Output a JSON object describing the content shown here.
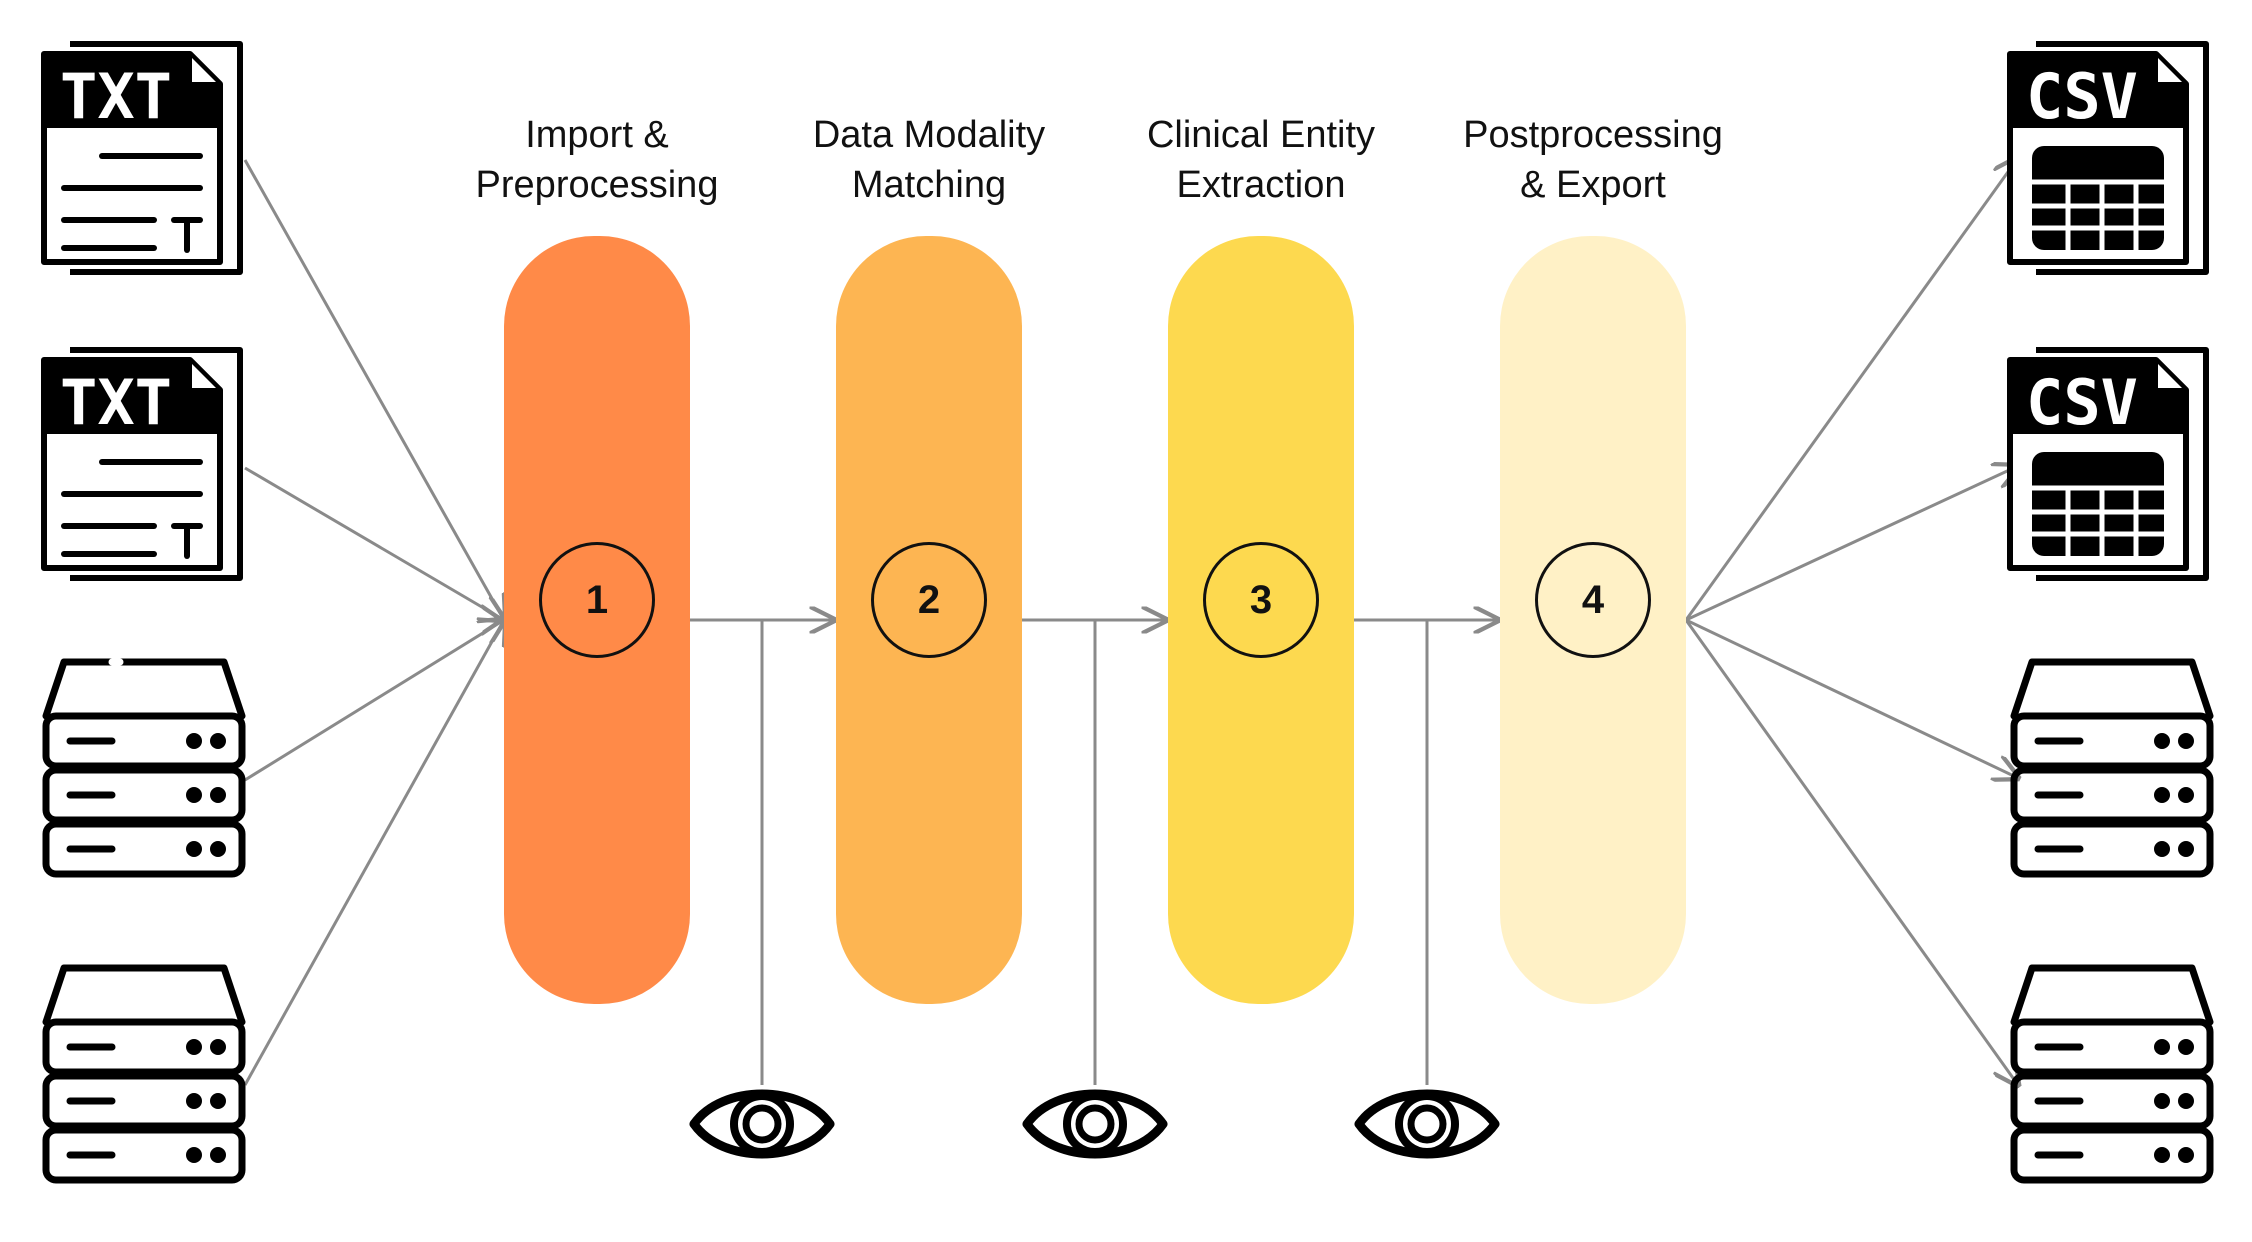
{
  "stages": [
    {
      "number": "1",
      "title_line1": "Import &",
      "title_line2": "Preprocessing",
      "color": "#FF8A48"
    },
    {
      "number": "2",
      "title_line1": "Data Modality",
      "title_line2": "Matching",
      "color": "#FDB552"
    },
    {
      "number": "3",
      "title_line1": "Clinical Entity",
      "title_line2": "Extraction",
      "color": "#FDD94F"
    },
    {
      "number": "4",
      "title_line1": "Postprocessing",
      "title_line2": "& Export",
      "color": "#FFF1C6"
    }
  ],
  "inputs": [
    {
      "type": "txt-file",
      "label": "TXT",
      "icon": "txt-file-icon"
    },
    {
      "type": "txt-file",
      "label": "TXT",
      "icon": "txt-file-icon"
    },
    {
      "type": "database",
      "icon": "database-server-icon"
    },
    {
      "type": "database",
      "icon": "database-server-icon"
    }
  ],
  "outputs": [
    {
      "type": "csv-file",
      "label": "CSV",
      "icon": "csv-file-icon"
    },
    {
      "type": "csv-file",
      "label": "CSV",
      "icon": "csv-file-icon"
    },
    {
      "type": "database",
      "icon": "database-server-icon"
    },
    {
      "type": "database",
      "icon": "database-server-icon"
    }
  ],
  "monitors": [
    {
      "icon": "eye-icon"
    },
    {
      "icon": "eye-icon"
    },
    {
      "icon": "eye-icon"
    }
  ],
  "colors": {
    "ink": "#000000",
    "connector": "#8A8A8A"
  }
}
